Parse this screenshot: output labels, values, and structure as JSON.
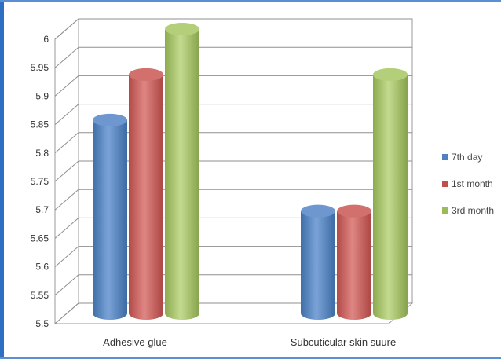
{
  "chart_data": {
    "type": "bar",
    "categories": [
      "Adhesive glue",
      "Subcuticular skin suure"
    ],
    "series": [
      {
        "name": "7th day",
        "values": [
          5.84,
          5.68
        ],
        "color": "#4f81bd"
      },
      {
        "name": "1st month",
        "values": [
          5.92,
          5.68
        ],
        "color": "#c0504d"
      },
      {
        "name": "3rd month",
        "values": [
          6.0,
          5.92
        ],
        "color": "#9bbb59"
      }
    ],
    "ylim": [
      5.5,
      6.0
    ],
    "yticks": [
      "5.5",
      "5.55",
      "5.6",
      "5.65",
      "5.7",
      "5.75",
      "5.8",
      "5.85",
      "5.9",
      "5.95",
      "6"
    ],
    "grid": true,
    "legend_position": "right",
    "style": "3d-cylinder"
  }
}
